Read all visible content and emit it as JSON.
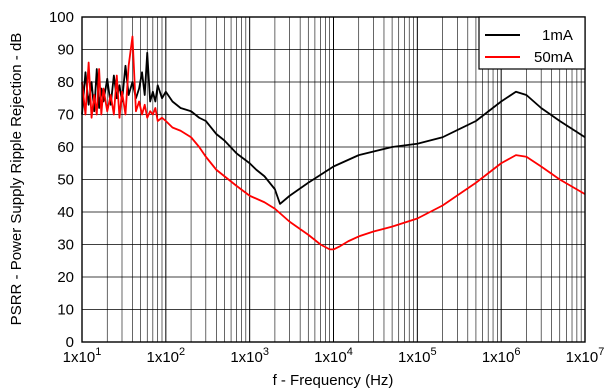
{
  "chart_data": {
    "type": "line",
    "title": "",
    "xlabel": "f - Frequency (Hz)",
    "ylabel": "PSRR - Power Supply Ripple Rejection - dB",
    "x_scale": "log",
    "xlim": [
      10,
      10000000
    ],
    "ylim": [
      0,
      100
    ],
    "grid": true,
    "legend_position": "top-right",
    "x_tick_labels": [
      "1x10",
      "1x10",
      "1x10",
      "1x10",
      "1x10",
      "1x10",
      "1x10"
    ],
    "x_tick_exponents": [
      "1",
      "2",
      "3",
      "4",
      "5",
      "6",
      "7"
    ],
    "y_tick_labels": [
      "0",
      "10",
      "20",
      "30",
      "40",
      "50",
      "60",
      "70",
      "80",
      "90",
      "100"
    ],
    "series": [
      {
        "name": "1mA",
        "color": "#000000",
        "x": [
          10,
          11,
          12,
          13,
          14,
          15,
          16,
          17,
          18,
          20,
          22,
          24,
          26,
          28,
          30,
          33,
          36,
          40,
          44,
          48,
          52,
          56,
          60,
          65,
          70,
          75,
          80,
          90,
          100,
          120,
          150,
          200,
          250,
          300,
          400,
          500,
          700,
          1000,
          1200,
          1500,
          2000,
          2300,
          3000,
          5000,
          10000,
          20000,
          50000,
          100000,
          200000,
          500000,
          1000000,
          1500000,
          2000000,
          3000000,
          5000000,
          10000000
        ],
        "y": [
          70,
          83,
          73,
          80,
          71,
          84,
          72,
          78,
          74,
          81,
          73,
          82,
          75,
          79,
          74,
          85,
          76,
          80,
          75,
          78,
          83,
          76,
          89,
          74,
          77,
          74,
          79,
          75,
          77,
          74,
          72,
          71,
          69,
          68,
          64,
          62,
          58,
          55,
          53,
          51,
          47,
          42.5,
          45,
          49,
          54,
          57.5,
          60,
          61,
          63,
          68,
          74,
          77,
          76,
          72,
          68,
          63
        ]
      },
      {
        "name": "50mA",
        "color": "#ff0000",
        "x": [
          10,
          11,
          12,
          13,
          14,
          15,
          16,
          17,
          18,
          20,
          22,
          24,
          26,
          28,
          30,
          33,
          36,
          40,
          44,
          48,
          52,
          56,
          60,
          65,
          70,
          75,
          80,
          90,
          100,
          120,
          150,
          200,
          250,
          300,
          400,
          500,
          700,
          1000,
          1500,
          2000,
          3000,
          5000,
          7000,
          9000,
          10000,
          12000,
          15000,
          20000,
          30000,
          50000,
          100000,
          200000,
          500000,
          1000000,
          1500000,
          2000000,
          3000000,
          5000000,
          10000000
        ],
        "y": [
          80,
          70,
          86,
          69,
          76,
          70,
          84,
          70,
          78,
          71,
          76,
          70,
          82,
          69,
          77,
          70,
          85,
          94,
          71,
          74,
          70,
          73,
          69,
          71,
          70,
          72,
          68,
          69,
          68,
          66,
          65,
          63,
          60,
          57,
          53,
          51,
          48,
          45,
          43,
          41,
          37,
          33,
          30,
          28.5,
          28.5,
          29.5,
          31,
          32.5,
          34,
          35.5,
          38,
          42,
          49,
          55,
          57.5,
          57,
          54,
          50,
          45.5
        ]
      }
    ]
  }
}
